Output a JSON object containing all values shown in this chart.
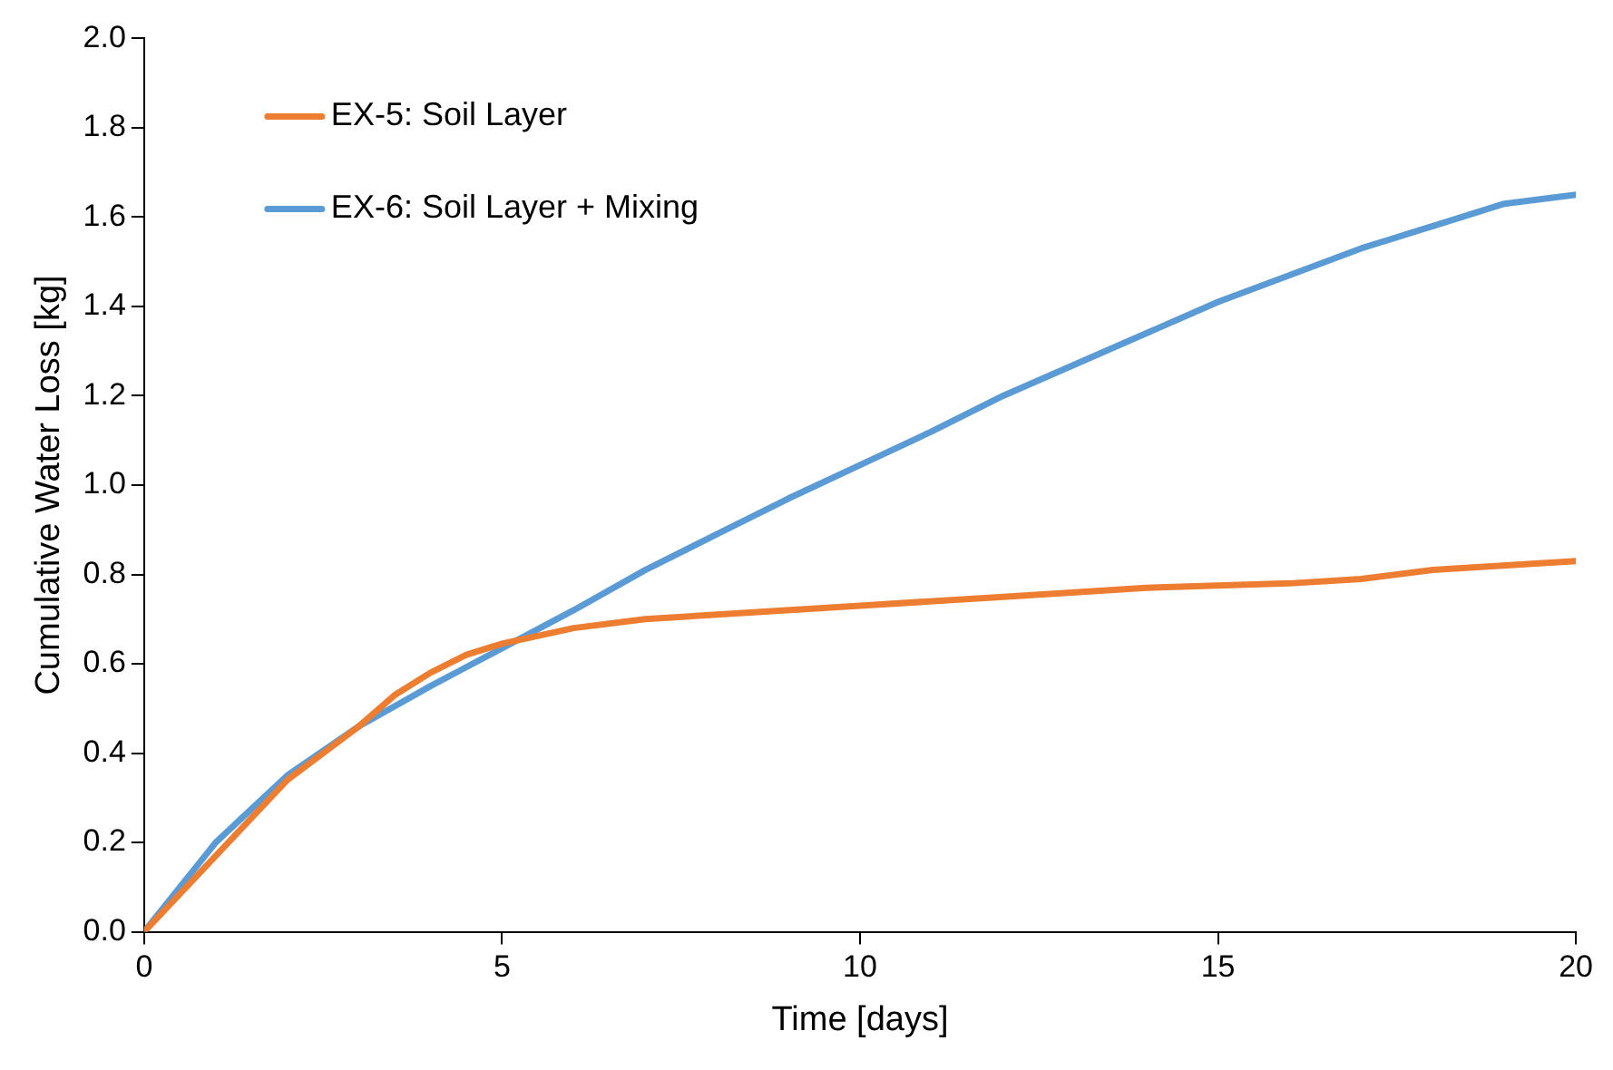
{
  "chart_data": {
    "type": "line",
    "xlabel": "Time [days]",
    "ylabel": "Cumulative Water Loss [kg]",
    "xlim": [
      0,
      20
    ],
    "xticks": [
      0,
      5,
      10,
      15,
      20
    ],
    "ylim": [
      0,
      2
    ],
    "yticks": [
      {
        "value": 0,
        "label": "0.0"
      },
      {
        "value": 0.2,
        "label": "0.2"
      },
      {
        "value": 0.4,
        "label": "0.4"
      },
      {
        "value": 0.6,
        "label": "0.6"
      },
      {
        "value": 0.8,
        "label": "0.8"
      },
      {
        "value": 1,
        "label": "1.0"
      },
      {
        "value": 1.2,
        "label": "1.2"
      },
      {
        "value": 1.4,
        "label": "1.4"
      },
      {
        "value": 1.6,
        "label": "1.6"
      },
      {
        "value": 1.8,
        "label": "1.8"
      },
      {
        "value": 2,
        "label": "2.0"
      }
    ],
    "grid": false,
    "legend": "top left",
    "marker": "none",
    "line_style": "solid",
    "series": [
      {
        "name": "EX-5: Soil Layer",
        "color": "#ed7d31",
        "x": [
          0,
          1,
          2,
          3,
          3.5,
          4,
          4.5,
          5,
          6,
          7,
          8,
          10,
          12,
          14,
          16,
          17,
          18,
          20
        ],
        "values": [
          0,
          0.17,
          0.34,
          0.46,
          0.53,
          0.58,
          0.62,
          0.645,
          0.68,
          0.7,
          0.71,
          0.73,
          0.75,
          0.77,
          0.78,
          0.79,
          0.81,
          0.83
        ]
      },
      {
        "name": "EX-6: Soil Layer + Mixing",
        "color": "#5b9bd5",
        "x": [
          0,
          1,
          2,
          3,
          4,
          5,
          6,
          7,
          8,
          9,
          10,
          11,
          12,
          13,
          14,
          15,
          16,
          17,
          18,
          19,
          20
        ],
        "values": [
          0,
          0.2,
          0.35,
          0.46,
          0.55,
          0.635,
          0.72,
          0.81,
          0.89,
          0.97,
          1.045,
          1.12,
          1.2,
          1.27,
          1.34,
          1.41,
          1.47,
          1.53,
          1.58,
          1.63,
          1.65
        ]
      }
    ]
  }
}
